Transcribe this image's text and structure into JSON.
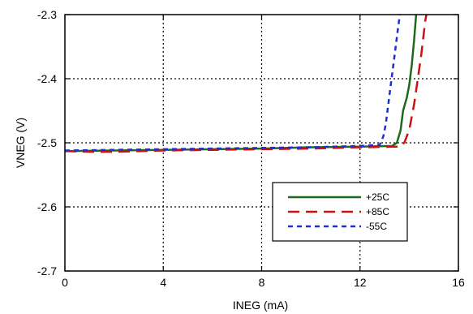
{
  "chart_data": {
    "type": "line",
    "xlabel": "INEG (mA)",
    "ylabel": "VNEG (V)",
    "xlim": [
      0,
      16
    ],
    "ylim": [
      -2.7,
      -2.3
    ],
    "xticks": [
      0,
      4,
      8,
      12,
      16
    ],
    "yticks": [
      -2.7,
      -2.6,
      -2.5,
      -2.4,
      -2.3
    ],
    "xtick_labels": [
      "0",
      "4",
      "8",
      "12",
      "16"
    ],
    "ytick_labels": [
      "-2.7",
      "-2.6",
      "-2.5",
      "-2.4",
      "-2.3"
    ],
    "grid": true,
    "legend_position": "bottom-right",
    "series": [
      {
        "name": "+25C",
        "color": "#1a6b1a",
        "dash": "solid",
        "points": [
          [
            0,
            -2.513
          ],
          [
            2,
            -2.512
          ],
          [
            4,
            -2.511
          ],
          [
            6,
            -2.51
          ],
          [
            8,
            -2.509
          ],
          [
            10,
            -2.507
          ],
          [
            12,
            -2.506
          ],
          [
            13.3,
            -2.505
          ],
          [
            13.5,
            -2.5
          ],
          [
            13.65,
            -2.48
          ],
          [
            13.75,
            -2.45
          ],
          [
            13.9,
            -2.43
          ],
          [
            14.0,
            -2.41
          ],
          [
            14.1,
            -2.38
          ],
          [
            14.2,
            -2.34
          ],
          [
            14.28,
            -2.3
          ]
        ]
      },
      {
        "name": "+85C",
        "color": "#cc1111",
        "dash": "long",
        "points": [
          [
            0,
            -2.513
          ],
          [
            1,
            -2.514
          ],
          [
            2,
            -2.514
          ],
          [
            4,
            -2.512
          ],
          [
            6,
            -2.511
          ],
          [
            8,
            -2.51
          ],
          [
            10,
            -2.509
          ],
          [
            12,
            -2.507
          ],
          [
            13.6,
            -2.506
          ],
          [
            13.8,
            -2.5
          ],
          [
            14.0,
            -2.48
          ],
          [
            14.2,
            -2.44
          ],
          [
            14.35,
            -2.4
          ],
          [
            14.5,
            -2.36
          ],
          [
            14.65,
            -2.31
          ],
          [
            14.7,
            -2.3
          ]
        ]
      },
      {
        "name": "-55C",
        "color": "#1f2fd0",
        "dash": "short",
        "points": [
          [
            0,
            -2.512
          ],
          [
            2,
            -2.511
          ],
          [
            4,
            -2.51
          ],
          [
            6,
            -2.509
          ],
          [
            8,
            -2.508
          ],
          [
            10,
            -2.507
          ],
          [
            12,
            -2.505
          ],
          [
            12.8,
            -2.503
          ],
          [
            12.95,
            -2.49
          ],
          [
            13.05,
            -2.47
          ],
          [
            13.15,
            -2.44
          ],
          [
            13.25,
            -2.41
          ],
          [
            13.35,
            -2.38
          ],
          [
            13.45,
            -2.35
          ],
          [
            13.55,
            -2.32
          ],
          [
            13.62,
            -2.3
          ]
        ]
      }
    ]
  }
}
